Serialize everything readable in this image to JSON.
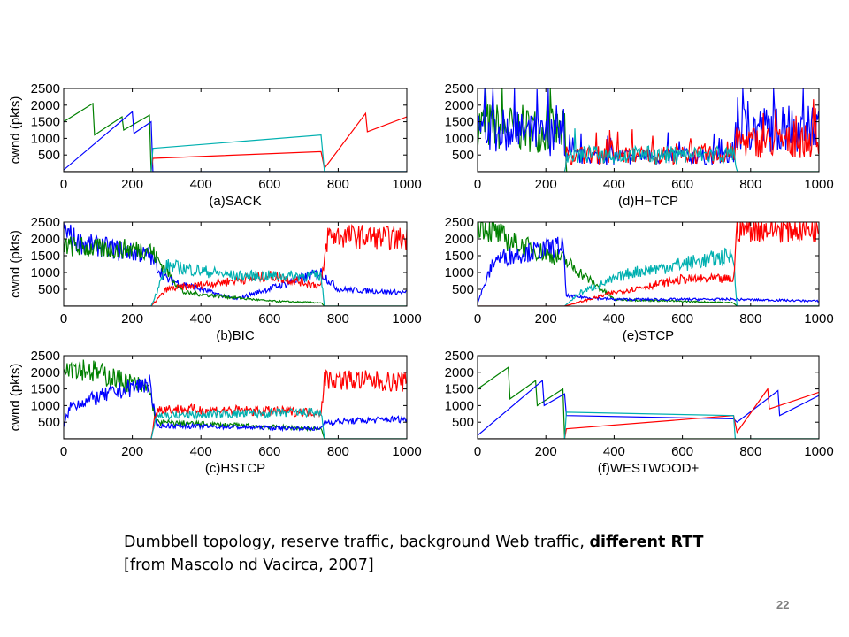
{
  "chart_data": [
    {
      "id": "a",
      "type": "line",
      "title": "(a)SACK",
      "ylabel": "cwnd (pkts)",
      "xlim": [
        0,
        1000
      ],
      "ylim": [
        0,
        2500
      ],
      "xticks": [
        0,
        200,
        400,
        600,
        800,
        1000
      ],
      "yticks": [
        500,
        1000,
        1500,
        2000,
        2500
      ],
      "series": [
        {
          "color": "#008000",
          "pattern": "sawtooth",
          "points": [
            [
              0,
              1500
            ],
            [
              85,
              2050
            ],
            [
              90,
              1100
            ],
            [
              170,
              1650
            ],
            [
              175,
              1250
            ],
            [
              250,
              1700
            ],
            [
              255,
              0
            ],
            [
              1000,
              0
            ]
          ]
        },
        {
          "color": "#0000ff",
          "pattern": "sawtooth",
          "points": [
            [
              0,
              50
            ],
            [
              200,
              1800
            ],
            [
              205,
              1150
            ],
            [
              255,
              1500
            ],
            [
              260,
              0
            ],
            [
              1000,
              0
            ]
          ]
        },
        {
          "color": "#ff0000",
          "pattern": "sawtooth",
          "points": [
            [
              0,
              0
            ],
            [
              255,
              0
            ],
            [
              260,
              400
            ],
            [
              750,
              600
            ],
            [
              760,
              100
            ],
            [
              880,
              1750
            ],
            [
              885,
              1200
            ],
            [
              1000,
              1650
            ]
          ]
        },
        {
          "color": "#00b0b0",
          "pattern": "sawtooth",
          "points": [
            [
              0,
              0
            ],
            [
              255,
              0
            ],
            [
              260,
              700
            ],
            [
              750,
              1100
            ],
            [
              760,
              0
            ],
            [
              1000,
              0
            ]
          ]
        }
      ]
    },
    {
      "id": "d",
      "type": "line",
      "title": "(d)H−TCP",
      "ylabel": "",
      "xlim": [
        0,
        1000
      ],
      "ylim": [
        0,
        2500
      ],
      "xticks": [
        0,
        200,
        400,
        600,
        800,
        1000
      ],
      "yticks": [
        500,
        1000,
        1500,
        2000,
        2500
      ],
      "series": [
        {
          "color": "#008000",
          "pattern": "spiky",
          "points": [
            [
              0,
              1400
            ],
            [
              255,
              1200
            ],
            [
              260,
              0
            ],
            [
              1000,
              0
            ]
          ]
        },
        {
          "color": "#0000ff",
          "pattern": "spiky",
          "points": [
            [
              0,
              1300
            ],
            [
              255,
              1000
            ],
            [
              260,
              450
            ],
            [
              750,
              450
            ],
            [
              760,
              1300
            ],
            [
              1000,
              1300
            ]
          ]
        },
        {
          "color": "#ff0000",
          "pattern": "spiky",
          "points": [
            [
              0,
              0
            ],
            [
              255,
              0
            ],
            [
              260,
              500
            ],
            [
              750,
              500
            ],
            [
              760,
              900
            ],
            [
              1000,
              900
            ]
          ]
        },
        {
          "color": "#00b0b0",
          "pattern": "spiky",
          "points": [
            [
              0,
              0
            ],
            [
              255,
              0
            ],
            [
              260,
              500
            ],
            [
              750,
              500
            ],
            [
              760,
              0
            ],
            [
              1000,
              0
            ]
          ]
        }
      ]
    },
    {
      "id": "b",
      "type": "line",
      "title": "(b)BIC",
      "ylabel": "cwnd (pkts)",
      "xlim": [
        0,
        1000
      ],
      "ylim": [
        0,
        2500
      ],
      "xticks": [
        0,
        200,
        400,
        600,
        800,
        1000
      ],
      "yticks": [
        500,
        1000,
        1500,
        2000,
        2500
      ],
      "series": [
        {
          "color": "#0000ff",
          "pattern": "noisy",
          "points": [
            [
              0,
              2300
            ],
            [
              40,
              1900
            ],
            [
              250,
              1500
            ],
            [
              300,
              800
            ],
            [
              500,
              200
            ],
            [
              750,
              1000
            ],
            [
              800,
              500
            ],
            [
              1000,
              400
            ]
          ]
        },
        {
          "color": "#008000",
          "pattern": "noisy",
          "points": [
            [
              0,
              1800
            ],
            [
              100,
              1700
            ],
            [
              250,
              1700
            ],
            [
              350,
              400
            ],
            [
              600,
              150
            ],
            [
              750,
              100
            ],
            [
              760,
              0
            ],
            [
              1000,
              0
            ]
          ]
        },
        {
          "color": "#ff0000",
          "pattern": "noisy",
          "points": [
            [
              0,
              0
            ],
            [
              255,
              0
            ],
            [
              300,
              500
            ],
            [
              600,
              900
            ],
            [
              750,
              600
            ],
            [
              770,
              2100
            ],
            [
              1000,
              2000
            ]
          ]
        },
        {
          "color": "#00b0b0",
          "pattern": "noisy",
          "points": [
            [
              0,
              0
            ],
            [
              255,
              0
            ],
            [
              300,
              1200
            ],
            [
              500,
              900
            ],
            [
              750,
              900
            ],
            [
              760,
              0
            ],
            [
              1000,
              0
            ]
          ]
        }
      ]
    },
    {
      "id": "e",
      "type": "line",
      "title": "(e)STCP",
      "ylabel": "",
      "xlim": [
        0,
        1000
      ],
      "ylim": [
        0,
        2500
      ],
      "xticks": [
        0,
        200,
        400,
        600,
        800,
        1000
      ],
      "yticks": [
        500,
        1000,
        1500,
        2000,
        2500
      ],
      "series": [
        {
          "color": "#008000",
          "pattern": "noisy",
          "points": [
            [
              0,
              2500
            ],
            [
              100,
              1900
            ],
            [
              250,
              1400
            ],
            [
              400,
              200
            ],
            [
              750,
              100
            ],
            [
              760,
              0
            ],
            [
              1000,
              0
            ]
          ]
        },
        {
          "color": "#0000ff",
          "pattern": "noisy",
          "points": [
            [
              0,
              100
            ],
            [
              50,
              1400
            ],
            [
              250,
              1800
            ],
            [
              260,
              300
            ],
            [
              400,
              200
            ],
            [
              750,
              200
            ],
            [
              1000,
              150
            ]
          ]
        },
        {
          "color": "#00b0b0",
          "pattern": "noisy",
          "points": [
            [
              0,
              0
            ],
            [
              255,
              0
            ],
            [
              300,
              400
            ],
            [
              450,
              1000
            ],
            [
              750,
              1500
            ],
            [
              760,
              0
            ],
            [
              1000,
              0
            ]
          ]
        },
        {
          "color": "#ff0000",
          "pattern": "noisy",
          "points": [
            [
              0,
              0
            ],
            [
              255,
              0
            ],
            [
              400,
              400
            ],
            [
              600,
              800
            ],
            [
              750,
              800
            ],
            [
              760,
              2300
            ],
            [
              1000,
              2300
            ]
          ]
        }
      ]
    },
    {
      "id": "c",
      "type": "line",
      "title": "(c)HSTCP",
      "ylabel": "cwnd (pkts)",
      "xlim": [
        0,
        1000
      ],
      "ylim": [
        0,
        2500
      ],
      "xticks": [
        0,
        200,
        400,
        600,
        800,
        1000
      ],
      "yticks": [
        500,
        1000,
        1500,
        2000,
        2500
      ],
      "series": [
        {
          "color": "#008000",
          "pattern": "noisy",
          "points": [
            [
              0,
              2300
            ],
            [
              250,
              1500
            ],
            [
              270,
              500
            ],
            [
              750,
              300
            ],
            [
              760,
              0
            ],
            [
              1000,
              0
            ]
          ]
        },
        {
          "color": "#0000ff",
          "pattern": "noisy",
          "points": [
            [
              0,
              400
            ],
            [
              20,
              1000
            ],
            [
              250,
              1700
            ],
            [
              270,
              400
            ],
            [
              750,
              300
            ],
            [
              760,
              500
            ],
            [
              1000,
              600
            ]
          ]
        },
        {
          "color": "#ff0000",
          "pattern": "noisy",
          "points": [
            [
              0,
              0
            ],
            [
              255,
              0
            ],
            [
              270,
              900
            ],
            [
              750,
              800
            ],
            [
              760,
              1800
            ],
            [
              1000,
              1700
            ]
          ]
        },
        {
          "color": "#00b0b0",
          "pattern": "noisy",
          "points": [
            [
              0,
              0
            ],
            [
              255,
              0
            ],
            [
              270,
              700
            ],
            [
              750,
              800
            ],
            [
              760,
              0
            ],
            [
              1000,
              0
            ]
          ]
        }
      ]
    },
    {
      "id": "f",
      "type": "line",
      "title": "(f)WESTWOOD+",
      "ylabel": "",
      "xlim": [
        0,
        1000
      ],
      "ylim": [
        0,
        2500
      ],
      "xticks": [
        0,
        200,
        400,
        600,
        800,
        1000
      ],
      "yticks": [
        500,
        1000,
        1500,
        2000,
        2500
      ],
      "series": [
        {
          "color": "#008000",
          "pattern": "sawtooth",
          "points": [
            [
              0,
              1500
            ],
            [
              90,
              2150
            ],
            [
              95,
              1200
            ],
            [
              170,
              1750
            ],
            [
              175,
              1000
            ],
            [
              250,
              1500
            ],
            [
              255,
              0
            ],
            [
              1000,
              0
            ]
          ]
        },
        {
          "color": "#0000ff",
          "pattern": "sawtooth",
          "points": [
            [
              0,
              100
            ],
            [
              190,
              1750
            ],
            [
              195,
              1000
            ],
            [
              255,
              1350
            ],
            [
              260,
              700
            ],
            [
              750,
              600
            ],
            [
              760,
              500
            ],
            [
              880,
              1450
            ],
            [
              885,
              700
            ],
            [
              1000,
              1300
            ]
          ]
        },
        {
          "color": "#ff0000",
          "pattern": "sawtooth",
          "points": [
            [
              0,
              0
            ],
            [
              255,
              0
            ],
            [
              260,
              300
            ],
            [
              750,
              700
            ],
            [
              760,
              200
            ],
            [
              850,
              1500
            ],
            [
              855,
              900
            ],
            [
              1000,
              1400
            ]
          ]
        },
        {
          "color": "#00b0b0",
          "pattern": "sawtooth",
          "points": [
            [
              0,
              0
            ],
            [
              255,
              0
            ],
            [
              260,
              800
            ],
            [
              750,
              700
            ],
            [
              755,
              0
            ],
            [
              1000,
              0
            ]
          ]
        }
      ]
    }
  ],
  "caption": {
    "line1_text": "Dumbbell topology, reserve traffic, background Web traffic, ",
    "line1_bold": "different RTT",
    "line2": "[from Mascolo nd Vacirca, 2007]"
  },
  "slide_number": "22"
}
